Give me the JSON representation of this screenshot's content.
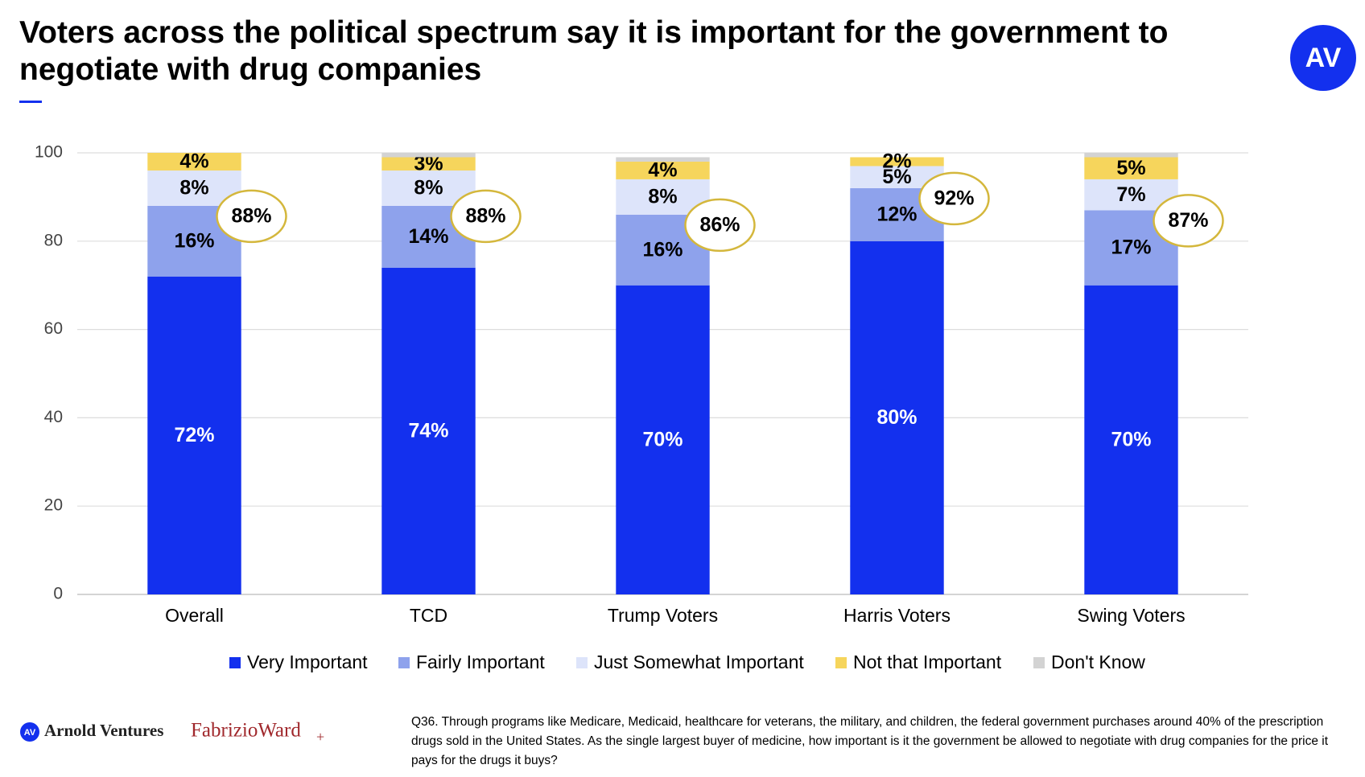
{
  "title": "Voters across the political spectrum say it is important for the government to negotiate with drug companies",
  "logo": "AV",
  "footer": {
    "brand_1_icon": "AV",
    "brand_1": "Arnold Ventures",
    "brand_2": "FabrizioWard",
    "brand_2_mark": "+"
  },
  "note": "Q36. Through programs like Medicare, Medicaid, healthcare for veterans, the military, and children, the federal government purchases around 40% of the prescription drugs sold in the United States. As the single largest buyer of medicine, how important is it the government be allowed to negotiate with drug companies for the price it pays for the drugs it buys?",
  "chart_data": {
    "type": "stacked_bar",
    "categories": [
      "Overall",
      "TCD",
      "Trump Voters",
      "Harris Voters",
      "Swing Voters"
    ],
    "series": [
      {
        "name": "Very Important",
        "color": "#1330ee",
        "values": [
          72,
          74,
          70,
          80,
          70
        ],
        "value_labels": [
          "72%",
          "74%",
          "70%",
          "80%",
          "70%"
        ]
      },
      {
        "name": "Fairly Important",
        "color": "#8ea2ec",
        "values": [
          16,
          14,
          16,
          12,
          17
        ],
        "value_labels": [
          "16%",
          "14%",
          "16%",
          "12%",
          "17%"
        ]
      },
      {
        "name": "Just Somewhat Important",
        "color": "#dde4fa",
        "values": [
          8,
          8,
          8,
          5,
          7
        ],
        "value_labels": [
          "8%",
          "8%",
          "8%",
          "5%",
          "7%"
        ]
      },
      {
        "name": "Not that Important",
        "color": "#f6d55c",
        "values": [
          4,
          3,
          4,
          2,
          5
        ],
        "value_labels": [
          "4%",
          "3%",
          "4%",
          "2%",
          "5%"
        ]
      },
      {
        "name": "Don't Know",
        "color": "#d3d3d3",
        "values": [
          0,
          1,
          1,
          0,
          1
        ]
      }
    ],
    "totals": {
      "values": [
        88,
        88,
        86,
        92,
        87
      ],
      "value_labels": [
        "88%",
        "88%",
        "86%",
        "92%",
        "87%"
      ]
    },
    "ylim": [
      0,
      100
    ],
    "yticks": [
      0,
      20,
      40,
      60,
      80,
      100
    ],
    "grid": true,
    "legend": "bottom"
  }
}
